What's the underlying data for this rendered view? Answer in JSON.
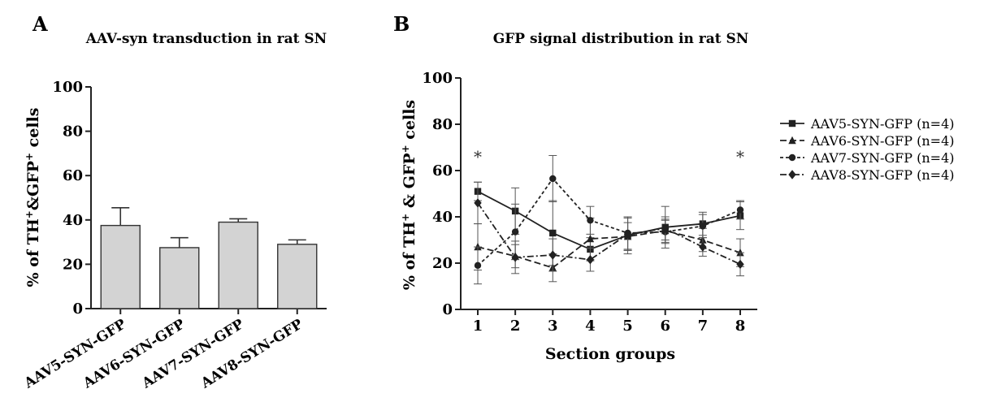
{
  "chart_data": [
    {
      "panel_label": "A",
      "type": "bar",
      "title": "AAV-syn transduction in rat SN",
      "xlabel": "",
      "ylabel_parts": {
        "p1": "% of TH",
        "s1": "+",
        "p2": "&GFP",
        "s2": "+",
        "p3": " cells"
      },
      "ylim": [
        0,
        100
      ],
      "y_ticks": [
        "0",
        "20",
        "40",
        "60",
        "80",
        "100"
      ],
      "categories": [
        "AAV5-SYN-GFP",
        "AAV6-SYN-GFP",
        "AAV7-SYN-GFP",
        "AAV8-SYN-GFP"
      ],
      "values": [
        37.5,
        27.5,
        39,
        29
      ],
      "errors": [
        8,
        4.5,
        1.5,
        2
      ],
      "bar_color": "#d3d3d3"
    },
    {
      "panel_label": "B",
      "type": "line",
      "title": "GFP signal distribution in rat SN",
      "xlabel": "Section groups",
      "ylabel_parts": {
        "p1": "% of TH",
        "s1": "+",
        "p2": " & GFP",
        "s2": "+",
        "p3": " cells"
      },
      "ylim": [
        0,
        100
      ],
      "y_ticks": [
        "0",
        "20",
        "40",
        "60",
        "80",
        "100"
      ],
      "x_ticks": [
        "1",
        "2",
        "3",
        "4",
        "5",
        "6",
        "7",
        "8"
      ],
      "x": [
        1,
        2,
        3,
        4,
        5,
        6,
        7,
        8
      ],
      "legend_position": "right",
      "annotations": [
        {
          "text": "*",
          "x": 1,
          "y": 67
        },
        {
          "text": "*",
          "x": 8,
          "y": 67
        }
      ],
      "series": [
        {
          "name": "AAV5-SYN-GFP (n=4)",
          "marker": "square",
          "dash": "",
          "values": [
            51,
            42.5,
            33,
            26,
            32,
            35.5,
            37,
            40.5
          ],
          "errors": [
            4,
            10,
            14,
            5,
            8,
            9,
            5,
            6
          ]
        },
        {
          "name": "AAV6-SYN-GFP (n=4)",
          "marker": "triangle",
          "dash": "8 4",
          "values": [
            27,
            23,
            18,
            30.5,
            31.5,
            34,
            30,
            24.5
          ],
          "errors": [
            10,
            5,
            6,
            9,
            6,
            5,
            5,
            6
          ]
        },
        {
          "name": "AAV7-SYN-GFP (n=4)",
          "marker": "circle",
          "dash": "4 3",
          "values": [
            19,
            33.5,
            56.5,
            38.5,
            33,
            33.5,
            36,
            43
          ],
          "errors": [
            8,
            12,
            10,
            6,
            7,
            5,
            5,
            4
          ]
        },
        {
          "name": "AAV8-SYN-GFP (n=4)",
          "marker": "diamond",
          "dash": "8 3 2 3",
          "values": [
            46,
            22.5,
            23.5,
            21.5,
            32.5,
            35,
            27,
            19.5
          ],
          "errors": [
            9,
            7,
            7,
            5,
            7,
            5,
            4,
            5
          ]
        }
      ]
    }
  ]
}
